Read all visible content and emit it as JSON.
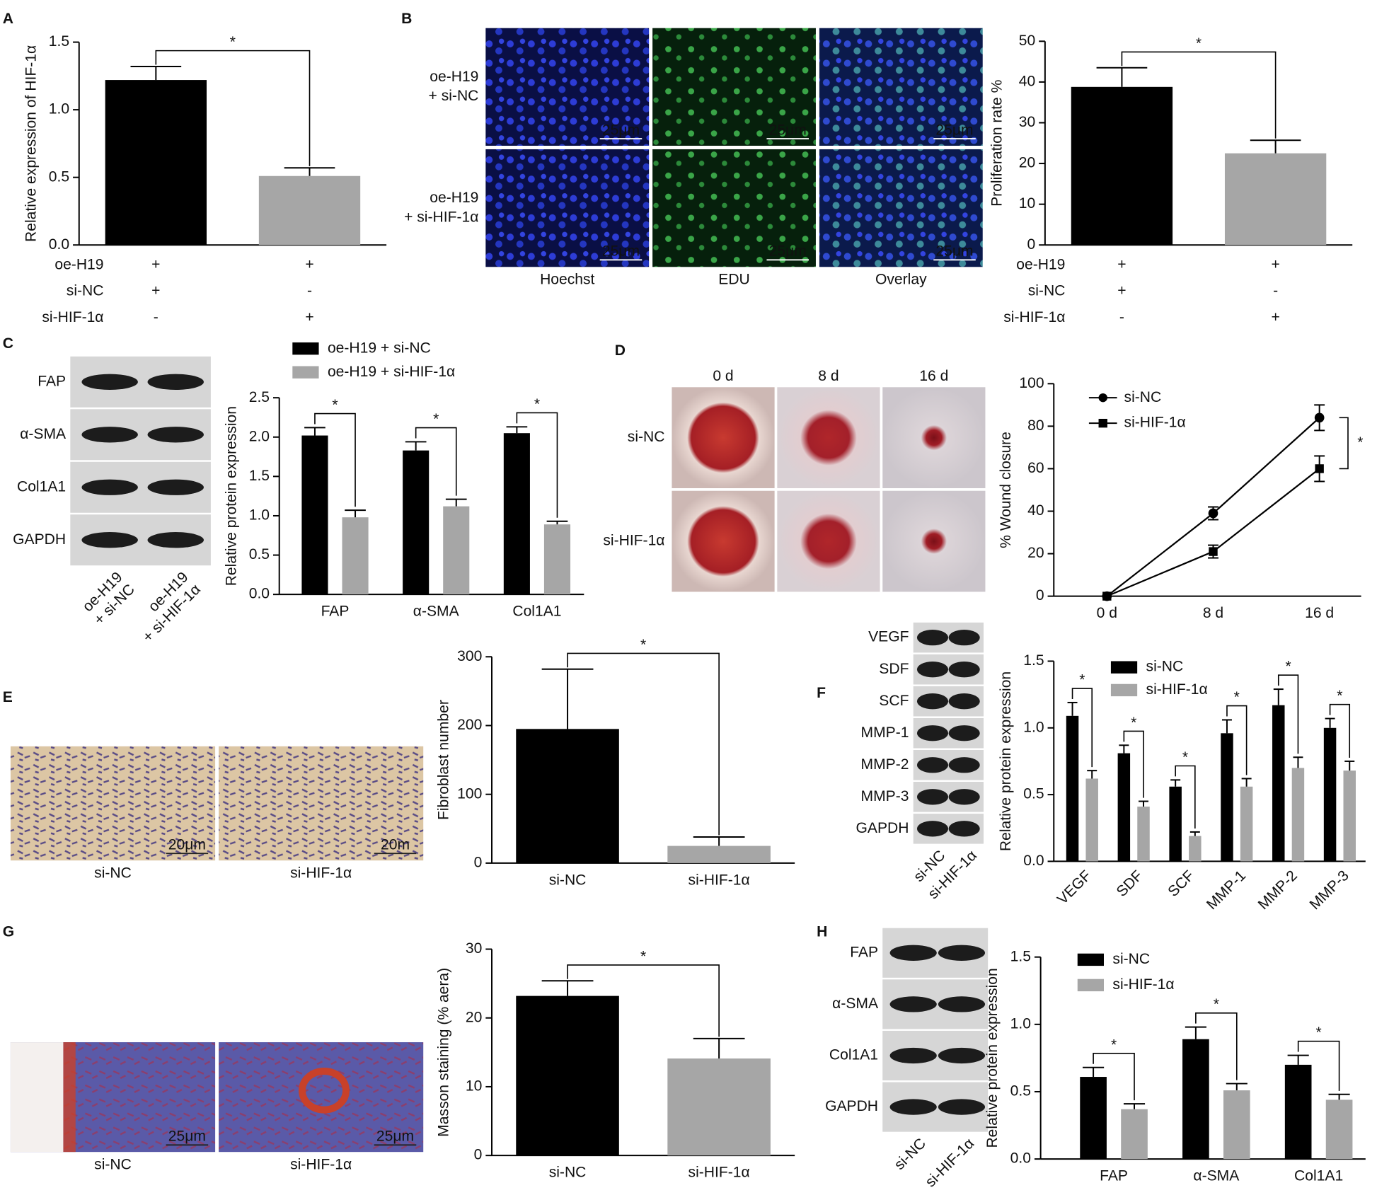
{
  "panel_letters": [
    "A",
    "B",
    "C",
    "D",
    "E",
    "F",
    "G",
    "H"
  ],
  "chart_data": [
    {
      "type": "bar",
      "ylabel": "Relative expression of HIF-1α",
      "ylim": [
        0,
        1.5
      ],
      "yticks": [
        {
          "value": 0,
          "label": "0.0"
        },
        0.5,
        {
          "value": 1,
          "label": "1.0"
        },
        1.5
      ],
      "values": [
        1.22,
        0.51
      ],
      "errors": [
        0.1,
        0.06
      ],
      "colors": [
        "#000000",
        "#a6a6a6"
      ],
      "annotations": [
        "*"
      ],
      "conditions": [
        {
          "label": "oe-H19",
          "signs": [
            "+",
            "+"
          ]
        },
        {
          "label": "si-NC",
          "signs": [
            "+",
            "-"
          ]
        },
        {
          "label": "si-HIF-1α",
          "signs": [
            "-",
            "+"
          ]
        }
      ]
    },
    {
      "type": "bar",
      "ylabel": "Proliferation rate %",
      "ylim": [
        0,
        50
      ],
      "yticks": [
        0,
        10,
        20,
        30,
        40,
        50
      ],
      "values": [
        38.8,
        22.5
      ],
      "errors": [
        4.7,
        3.2
      ],
      "colors": [
        "#000000",
        "#a6a6a6"
      ],
      "annotations": [
        "*"
      ],
      "conditions": [
        {
          "label": "oe-H19",
          "signs": [
            "+",
            "+"
          ]
        },
        {
          "label": "si-NC",
          "signs": [
            "+",
            "-"
          ]
        },
        {
          "label": "si-HIF-1α",
          "signs": [
            "-",
            "+"
          ]
        }
      ]
    },
    {
      "type": "bar",
      "ylabel": "Relative protein expression",
      "ylim": [
        0,
        2.5
      ],
      "yticks": [
        {
          "value": 0,
          "label": "0.0"
        },
        0.5,
        {
          "value": 1,
          "label": "1.0"
        },
        1.5,
        {
          "value": 2,
          "label": "2.0"
        },
        2.5
      ],
      "categories": [
        "FAP",
        "α-SMA",
        "Col1A1"
      ],
      "series": [
        {
          "name": "oe-H19 + si-NC",
          "color": "#000000",
          "values": [
            2.02,
            1.83,
            2.05
          ],
          "errors": [
            0.1,
            0.11,
            0.08
          ]
        },
        {
          "name": "oe-H19 + si-HIF-1α",
          "color": "#a6a6a6",
          "values": [
            0.98,
            1.12,
            0.89
          ],
          "errors": [
            0.09,
            0.09,
            0.04
          ]
        }
      ],
      "annotations": [
        "*",
        "*",
        "*"
      ]
    },
    {
      "type": "line",
      "ylabel": "% Wound closure",
      "ylim": [
        0,
        100
      ],
      "yticks": [
        0,
        20,
        40,
        60,
        80,
        100
      ],
      "categories": [
        "0 d",
        "8 d",
        "16 d"
      ],
      "series": [
        {
          "name": "si-NC",
          "color": "#000000",
          "marker": "circle",
          "values": [
            0,
            39,
            84
          ],
          "errors": [
            0,
            3,
            6
          ]
        },
        {
          "name": "si-HIF-1α",
          "color": "#000000",
          "marker": "square",
          "values": [
            0,
            21,
            60
          ],
          "errors": [
            0,
            3,
            6
          ]
        }
      ],
      "annotations": [
        "*"
      ]
    },
    {
      "type": "bar",
      "ylabel": "Fibroblast number",
      "ylim": [
        0,
        300
      ],
      "yticks": [
        0,
        100,
        200,
        300
      ],
      "categories": [
        "si-NC",
        "si-HIF-1α"
      ],
      "values": [
        195,
        25
      ],
      "errors": [
        87,
        13
      ],
      "colors": [
        "#000000",
        "#a6a6a6"
      ],
      "annotations": [
        "*"
      ]
    },
    {
      "type": "bar",
      "ylabel": "Relative protein expression",
      "ylim": [
        0,
        1.5
      ],
      "yticks": [
        {
          "value": 0,
          "label": "0.0"
        },
        0.5,
        {
          "value": 1,
          "label": "1.0"
        },
        1.5
      ],
      "categories": [
        "VEGF",
        "SDF",
        "SCF",
        "MMP-1",
        "MMP-2",
        "MMP-3"
      ],
      "series": [
        {
          "name": "si-NC",
          "color": "#000000",
          "values": [
            1.09,
            0.81,
            0.56,
            0.96,
            1.17,
            1.0
          ],
          "errors": [
            0.1,
            0.06,
            0.05,
            0.1,
            0.12,
            0.07
          ]
        },
        {
          "name": "si-HIF-1α",
          "color": "#a6a6a6",
          "values": [
            0.62,
            0.41,
            0.19,
            0.56,
            0.7,
            0.68
          ],
          "errors": [
            0.06,
            0.04,
            0.03,
            0.06,
            0.08,
            0.07
          ]
        }
      ],
      "annotations": [
        "*",
        "*",
        "*",
        "*",
        "*",
        "*"
      ]
    },
    {
      "type": "bar",
      "ylabel": "Masson staining (% aera)",
      "ylim": [
        0,
        30
      ],
      "yticks": [
        0,
        10,
        20,
        30
      ],
      "categories": [
        "si-NC",
        "si-HIF-1α"
      ],
      "values": [
        23.2,
        14.1
      ],
      "errors": [
        2.2,
        2.9
      ],
      "colors": [
        "#000000",
        "#a6a6a6"
      ],
      "annotations": [
        "*"
      ]
    },
    {
      "type": "bar",
      "ylabel": "Relative protein expression",
      "ylim": [
        0,
        1.5
      ],
      "yticks": [
        {
          "value": 0,
          "label": "0.0"
        },
        0.5,
        {
          "value": 1,
          "label": "1.0"
        },
        1.5
      ],
      "categories": [
        "FAP",
        "α-SMA",
        "Col1A1"
      ],
      "series": [
        {
          "name": "si-NC",
          "color": "#000000",
          "values": [
            0.61,
            0.89,
            0.7
          ],
          "errors": [
            0.07,
            0.09,
            0.07
          ]
        },
        {
          "name": "si-HIF-1α",
          "color": "#a6a6a6",
          "values": [
            0.37,
            0.51,
            0.44
          ],
          "errors": [
            0.04,
            0.05,
            0.04
          ]
        }
      ],
      "annotations": [
        "*",
        "*",
        "*"
      ]
    }
  ],
  "image_blocks": [
    {
      "row_labels": [
        [
          "oe-H19",
          "+ si-NC"
        ],
        [
          "oe-H19",
          "+ si-HIF-1α"
        ]
      ],
      "column_labels": [
        "Hoechst",
        "EDU",
        "Overlay"
      ],
      "scale_bars": [
        [
          "25μm",
          "25μm",
          "25μm"
        ],
        [
          "25μm",
          "25μm",
          "25μm"
        ]
      ]
    },
    {
      "row_labels": [
        [
          "si-NC"
        ],
        [
          "si-HIF-1α"
        ]
      ],
      "column_labels": [
        "0 d",
        "8 d",
        "16 d"
      ]
    },
    {
      "column_labels": [
        "si-NC",
        "si-HIF-1α"
      ],
      "scale_bars": [
        [
          "20μm",
          "20m"
        ]
      ]
    },
    {
      "column_labels": [
        "si-NC",
        "si-HIF-1α"
      ],
      "scale_bars": [
        [
          "25μm",
          "25μm"
        ]
      ]
    }
  ],
  "blots": [
    {
      "proteins": [
        "FAP",
        "α-SMA",
        "Col1A1",
        "GAPDH"
      ],
      "lanes": [
        [
          "oe-H19",
          "+ si-NC"
        ],
        [
          "oe-H19",
          "+ si-HIF-1α"
        ]
      ]
    },
    {
      "proteins": [
        "VEGF",
        "SDF",
        "SCF",
        "MMP-1",
        "MMP-2",
        "MMP-3",
        "GAPDH"
      ],
      "lanes": [
        [
          "si-NC"
        ],
        [
          "si-HIF-1α"
        ]
      ]
    },
    {
      "proteins": [
        "FAP",
        "α-SMA",
        "Col1A1",
        "GAPDH"
      ],
      "lanes": [
        [
          "si-NC"
        ],
        [
          "si-HIF-1α"
        ]
      ]
    }
  ]
}
